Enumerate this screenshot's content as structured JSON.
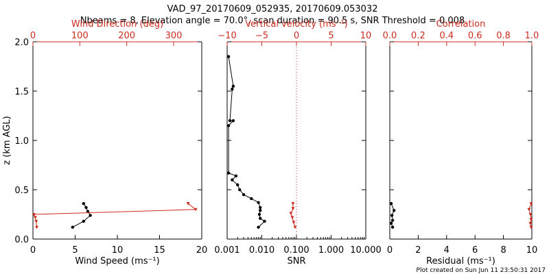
{
  "header": {
    "title_line1": "VAD_97_20170609_052935, 20170609.053032",
    "title_line2": "Nbeams = 8, Elevation angle = 70.0°, scan duration = 90.5 s, SNR Threshold = 0.008"
  },
  "footer": {
    "created": "Plot created on Sun Jun 11 23:50:31 2017"
  },
  "colors": {
    "red": "#cc2a1c",
    "black": "#000000"
  },
  "chart_data": [
    {
      "type": "line",
      "title": "Wind Direction (deg)",
      "xlabel": "Wind Speed (ms⁻¹)",
      "ylabel": "z (km AGL)",
      "xlim": [
        0,
        20
      ],
      "ylim": [
        0,
        2.0
      ],
      "xticks": [
        "0",
        "5",
        "10",
        "15",
        "20"
      ],
      "yticks": [
        "0.0",
        "0.5",
        "1.0",
        "1.5",
        "2.0"
      ],
      "top_axis": {
        "label": "Wind Direction (deg)",
        "lim": [
          0,
          360
        ],
        "ticks": [
          "0",
          "100",
          "200",
          "300"
        ]
      },
      "series": [
        {
          "name": "Wind speed",
          "color": "black",
          "x": [
            6.0,
            6.3,
            6.5,
            6.8,
            6.0,
            4.7
          ],
          "y": [
            0.36,
            0.32,
            0.28,
            0.24,
            0.18,
            0.12
          ]
        },
        {
          "name": "Wind direction",
          "color": "red",
          "x": [
            331,
            347,
            2,
            5,
            7,
            8
          ],
          "y": [
            0.36,
            0.3,
            0.25,
            0.22,
            0.18,
            0.12
          ]
        }
      ]
    },
    {
      "type": "line",
      "title": "Vertical velocity (ms⁻¹)",
      "xlabel": "SNR",
      "xscale": "log",
      "xlim": [
        0.001,
        10.0
      ],
      "xticks": [
        "0.001",
        "0.010",
        "0.100",
        "1.000",
        "10.000"
      ],
      "top_axis": {
        "label": "Vertical velocity (ms⁻¹)",
        "lim": [
          -10,
          10
        ],
        "ticks": [
          "−10",
          "−5",
          "0",
          "5",
          "10"
        ],
        "zero_line": true
      },
      "series": [
        {
          "name": "SNR",
          "color": "black",
          "x": [
            0.0011,
            0.0015,
            0.0014,
            0.0012,
            0.0015,
            0.0011,
            0.0011,
            0.0018,
            0.0014,
            0.002,
            0.0023,
            0.003,
            0.005,
            0.008,
            0.009,
            0.009,
            0.0085,
            0.009,
            0.012,
            0.008
          ],
          "y": [
            1.85,
            1.55,
            1.52,
            1.2,
            1.2,
            1.15,
            0.67,
            0.64,
            0.6,
            0.55,
            0.5,
            0.45,
            0.41,
            0.37,
            0.32,
            0.29,
            0.25,
            0.21,
            0.18,
            0.12
          ]
        },
        {
          "name": "Vertical velocity",
          "color": "red",
          "x": [
            -0.5,
            -0.5,
            -0.8,
            -0.6,
            -0.4,
            -0.2
          ],
          "y": [
            0.36,
            0.31,
            0.26,
            0.22,
            0.17,
            0.12
          ]
        }
      ]
    },
    {
      "type": "line",
      "title": "Correlation",
      "xlabel": "Residual (ms⁻¹)",
      "xlim": [
        0,
        10
      ],
      "xticks": [
        "0",
        "2",
        "4",
        "6",
        "8",
        "10"
      ],
      "top_axis": {
        "label": "Correlation",
        "lim": [
          0.0,
          1.0
        ],
        "ticks": [
          "0.0",
          "0.2",
          "0.4",
          "0.6",
          "0.8",
          "1.0"
        ]
      },
      "series": [
        {
          "name": "Residual",
          "color": "black",
          "x": [
            0.1,
            0.3,
            0.15,
            0.2,
            0.1,
            0.2
          ],
          "y": [
            0.36,
            0.29,
            0.24,
            0.19,
            0.16,
            0.12
          ]
        },
        {
          "name": "Correlation",
          "color": "red",
          "x": [
            0.995,
            0.98,
            0.99,
            0.995,
            0.99,
            0.995
          ],
          "y": [
            0.36,
            0.3,
            0.25,
            0.2,
            0.16,
            0.12
          ]
        }
      ]
    }
  ]
}
